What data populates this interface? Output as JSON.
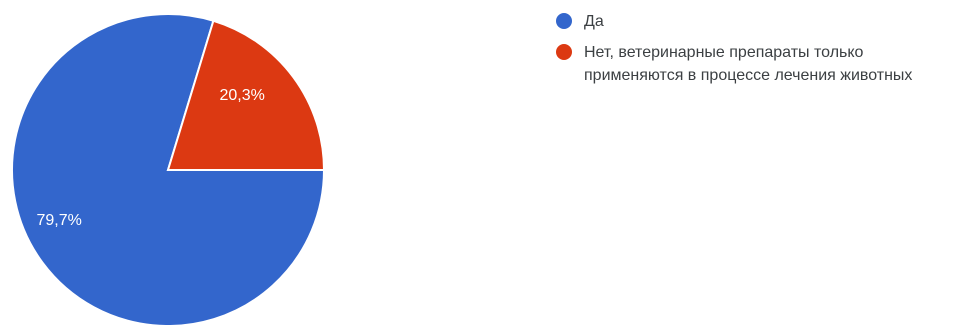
{
  "chart_data": {
    "type": "pie",
    "series": [
      {
        "name": "Да",
        "value": 79.7,
        "label": "79,7%",
        "color": "#3366cc"
      },
      {
        "name": "Нет, ветеринарные препараты только применяются в процессе лечения животных",
        "value": 20.3,
        "label": "20,3%",
        "color": "#dc3912"
      }
    ],
    "legend_position": "right"
  },
  "legend": {
    "items": [
      {
        "label": "Да",
        "color": "#3366cc"
      },
      {
        "label": "Нет, ветеринарные препараты только применяются в процессе лечения животных",
        "color": "#dc3912"
      }
    ]
  }
}
